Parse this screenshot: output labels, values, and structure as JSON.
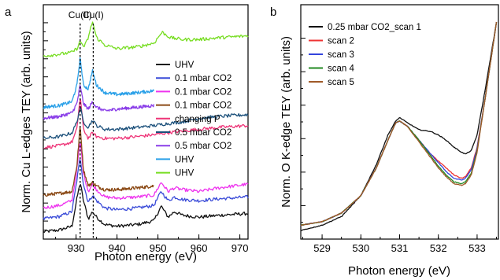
{
  "chart_data": [
    {
      "type": "line",
      "panel_label": "a",
      "xlabel": "Photon energy (eV)",
      "ylabel": "Norm. Cu L-edges TEY (arb. units)",
      "xlim": [
        922,
        972
      ],
      "x_ticks": [
        930,
        940,
        950,
        960,
        970
      ],
      "y_ticks_labeled": false,
      "grid": false,
      "legend_position": "center-right",
      "annotations": [
        {
          "text": "Cu(II)",
          "x": 931.0
        },
        {
          "text": "Cu(I)",
          "x": 934.2
        }
      ],
      "series": [
        {
          "name": "UHV",
          "color": "#111111",
          "x": [
            922,
            926,
            929,
            930.2,
            931.0,
            931.8,
            933,
            934,
            935,
            937,
            940,
            945,
            949,
            950.8,
            952.5,
            954,
            956,
            960,
            965,
            972
          ],
          "values": [
            0.0,
            0.05,
            0.15,
            0.9,
            1.35,
            0.85,
            0.35,
            0.55,
            0.4,
            0.2,
            0.15,
            0.2,
            0.3,
            0.7,
            0.4,
            0.55,
            0.45,
            0.4,
            0.45,
            0.5
          ]
        },
        {
          "name": "0.1 mbar CO2",
          "color": "#3a4bd8",
          "x": [
            922,
            926,
            929,
            930.2,
            931.0,
            931.8,
            933,
            934,
            935,
            937,
            940,
            945,
            949,
            950.8,
            952.5,
            954,
            956,
            960,
            965,
            972
          ],
          "values": [
            0.35,
            0.42,
            0.55,
            1.4,
            2.05,
            1.3,
            0.8,
            1.0,
            0.85,
            0.65,
            0.6,
            0.65,
            0.72,
            1.1,
            0.85,
            0.95,
            0.88,
            0.85,
            0.9,
            0.95
          ]
        },
        {
          "name": "0.1 mbar CO2",
          "color": "#ee33ee",
          "x": [
            922,
            926,
            929,
            930.2,
            931.0,
            931.8,
            933,
            934,
            935,
            937,
            940,
            945,
            949,
            950.8,
            952.5,
            954,
            956,
            960,
            965,
            972
          ],
          "values": [
            0.65,
            0.72,
            0.85,
            1.7,
            2.5,
            1.6,
            1.1,
            1.3,
            1.15,
            0.95,
            0.92,
            0.95,
            1.0,
            1.35,
            1.1,
            1.2,
            1.15,
            1.1,
            1.2,
            1.3
          ]
        },
        {
          "name": "0.1 mbar CO2",
          "color": "#8b4a16",
          "x": [
            922,
            926,
            929,
            930.2,
            931.0,
            931.8,
            933,
            934,
            935,
            937,
            940,
            945,
            949
          ],
          "values": [
            1.0,
            1.05,
            1.1,
            1.8,
            2.9,
            1.7,
            1.25,
            1.35,
            1.25,
            1.15,
            1.15,
            1.2,
            1.25
          ]
        },
        {
          "name": "changing P",
          "color": "#ee3377",
          "x": [
            922,
            926,
            929,
            930.2,
            931.0,
            931.8,
            933,
            934,
            935,
            937,
            940,
            945,
            949,
            952,
            956,
            960,
            965,
            972
          ],
          "values": [
            2.3,
            2.35,
            2.45,
            2.8,
            3.7,
            2.8,
            2.55,
            2.7,
            2.6,
            2.55,
            2.55,
            2.6,
            2.65,
            2.7,
            2.75,
            2.8,
            2.85,
            2.9
          ]
        },
        {
          "name": "0.5 mbar CO2",
          "color": "#1a4f7a",
          "x": [
            922,
            926,
            929,
            930.2,
            931.0,
            931.8,
            933,
            934,
            935,
            937,
            940,
            945,
            949,
            952,
            956,
            960,
            965,
            972
          ],
          "values": [
            2.55,
            2.6,
            2.7,
            3.0,
            3.4,
            3.0,
            2.85,
            3.05,
            2.9,
            2.8,
            2.8,
            2.85,
            2.9,
            2.95,
            3.0,
            3.1,
            3.15,
            3.2
          ]
        },
        {
          "name": "0.5 mbar CO2",
          "color": "#8a3ee8",
          "x": [
            922,
            926,
            929,
            930.2,
            931.0,
            931.8,
            933,
            934,
            935,
            937,
            940,
            945,
            949
          ],
          "values": [
            3.1,
            3.15,
            3.25,
            3.5,
            4.0,
            3.5,
            3.35,
            3.55,
            3.4,
            3.3,
            3.35,
            3.4,
            3.45
          ]
        },
        {
          "name": "UHV",
          "color": "#2aa0e8",
          "x": [
            922,
            926,
            929,
            930.2,
            931.0,
            931.8,
            933,
            934,
            935,
            937,
            940,
            945,
            949
          ],
          "values": [
            3.4,
            3.45,
            3.55,
            4.0,
            4.75,
            4.0,
            3.9,
            4.4,
            4.0,
            3.8,
            3.75,
            3.8,
            3.85
          ]
        },
        {
          "name": "UHV",
          "color": "#77dd22",
          "x": [
            922,
            926,
            929,
            930.2,
            931.0,
            932,
            933,
            934,
            935,
            937,
            940,
            945,
            949,
            951,
            953,
            956,
            960,
            965,
            972
          ],
          "values": [
            4.8,
            4.85,
            4.9,
            5.0,
            5.2,
            5.05,
            5.3,
            5.75,
            5.3,
            5.1,
            5.0,
            5.05,
            5.15,
            5.45,
            5.3,
            5.25,
            5.25,
            5.3,
            5.35
          ]
        }
      ]
    },
    {
      "type": "line",
      "panel_label": "b",
      "xlabel": "Photon energy (eV)",
      "ylabel": "Norm. O K-edge TEY (arb. units)",
      "xlim": [
        528.45,
        533.55
      ],
      "x_ticks": [
        529,
        530,
        531,
        532,
        533
      ],
      "y_ticks_labeled": false,
      "grid": false,
      "legend_position": "top-left",
      "series": [
        {
          "name": "0.25 mbar CO2_scan 1",
          "color": "#111111",
          "x": [
            528.45,
            529.0,
            529.5,
            530.0,
            530.4,
            530.7,
            530.9,
            531.0,
            531.2,
            531.5,
            531.8,
            532.0,
            532.2,
            532.4,
            532.6,
            532.7,
            532.85,
            533.0,
            533.2,
            533.5
          ],
          "values": [
            0.0,
            0.03,
            0.08,
            0.2,
            0.38,
            0.55,
            0.63,
            0.65,
            0.62,
            0.58,
            0.57,
            0.55,
            0.52,
            0.48,
            0.45,
            0.44,
            0.46,
            0.55,
            0.8,
            1.2
          ]
        },
        {
          "name": "scan 2",
          "color": "#ee3333",
          "x": [
            528.45,
            529.0,
            529.5,
            530.0,
            530.4,
            530.7,
            530.9,
            531.0,
            531.2,
            531.5,
            531.8,
            532.0,
            532.2,
            532.4,
            532.6,
            532.7,
            532.85,
            533.0,
            533.2,
            533.5
          ],
          "values": [
            0.03,
            0.05,
            0.1,
            0.2,
            0.36,
            0.52,
            0.62,
            0.63,
            0.6,
            0.52,
            0.44,
            0.4,
            0.36,
            0.32,
            0.3,
            0.31,
            0.36,
            0.48,
            0.75,
            1.2
          ]
        },
        {
          "name": "scan 3",
          "color": "#3344dd",
          "x": [
            528.45,
            529.0,
            529.5,
            530.0,
            530.4,
            530.7,
            530.9,
            531.0,
            531.2,
            531.5,
            531.8,
            532.0,
            532.2,
            532.4,
            532.6,
            532.7,
            532.85,
            533.0,
            533.2,
            533.5
          ],
          "values": [
            0.03,
            0.05,
            0.1,
            0.2,
            0.36,
            0.52,
            0.62,
            0.63,
            0.6,
            0.52,
            0.44,
            0.39,
            0.34,
            0.3,
            0.29,
            0.3,
            0.35,
            0.47,
            0.75,
            1.2
          ]
        },
        {
          "name": "scan 4",
          "color": "#228822",
          "x": [
            528.45,
            529.0,
            529.5,
            530.0,
            530.4,
            530.7,
            530.9,
            531.0,
            531.2,
            531.5,
            531.8,
            532.0,
            532.2,
            532.4,
            532.6,
            532.7,
            532.85,
            533.0,
            533.2,
            533.5
          ],
          "values": [
            0.03,
            0.05,
            0.1,
            0.2,
            0.36,
            0.52,
            0.62,
            0.63,
            0.6,
            0.52,
            0.43,
            0.37,
            0.32,
            0.28,
            0.27,
            0.28,
            0.33,
            0.46,
            0.75,
            1.2
          ]
        },
        {
          "name": "scan 5",
          "color": "#a05a28",
          "x": [
            528.45,
            529.0,
            529.5,
            530.0,
            530.4,
            530.7,
            530.9,
            531.0,
            531.2,
            531.5,
            531.8,
            532.0,
            532.2,
            532.4,
            532.6,
            532.7,
            532.85,
            533.0,
            533.2,
            533.5
          ],
          "values": [
            0.03,
            0.05,
            0.1,
            0.2,
            0.36,
            0.52,
            0.62,
            0.63,
            0.6,
            0.51,
            0.42,
            0.36,
            0.31,
            0.27,
            0.26,
            0.27,
            0.32,
            0.45,
            0.75,
            1.2
          ]
        }
      ]
    }
  ]
}
